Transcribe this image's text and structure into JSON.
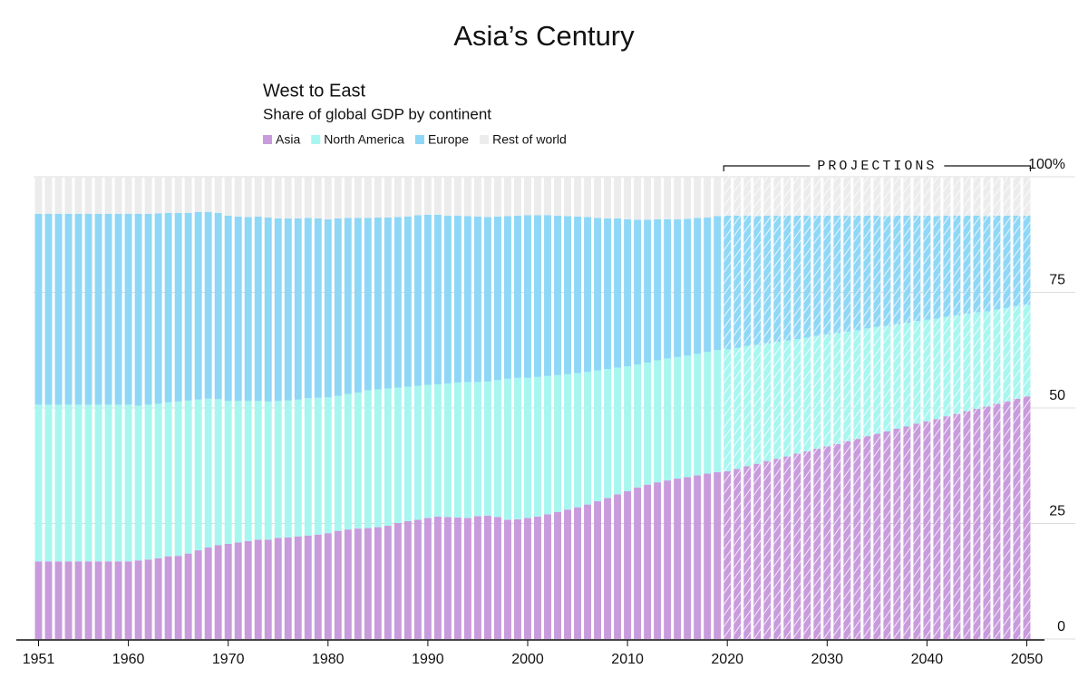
{
  "page_title": "Asia’s Century",
  "chart_data": {
    "type": "stacked_bar",
    "title": "West to East",
    "subtitle": "Share of global GDP by continent",
    "x": [
      1951,
      1952,
      1953,
      1954,
      1955,
      1956,
      1957,
      1958,
      1959,
      1960,
      1961,
      1962,
      1963,
      1964,
      1965,
      1966,
      1967,
      1968,
      1969,
      1970,
      1971,
      1972,
      1973,
      1974,
      1975,
      1976,
      1977,
      1978,
      1979,
      1980,
      1981,
      1982,
      1983,
      1984,
      1985,
      1986,
      1987,
      1988,
      1989,
      1990,
      1991,
      1992,
      1993,
      1994,
      1995,
      1996,
      1997,
      1998,
      1999,
      2000,
      2001,
      2002,
      2003,
      2004,
      2005,
      2006,
      2007,
      2008,
      2009,
      2010,
      2011,
      2012,
      2013,
      2014,
      2015,
      2016,
      2017,
      2018,
      2019,
      2020,
      2021,
      2022,
      2023,
      2024,
      2025,
      2026,
      2027,
      2028,
      2029,
      2030,
      2031,
      2032,
      2033,
      2034,
      2035,
      2036,
      2037,
      2038,
      2039,
      2040,
      2041,
      2042,
      2043,
      2044,
      2045,
      2046,
      2047,
      2048,
      2049,
      2050
    ],
    "series": [
      {
        "name": "Asia",
        "color": "#c89bdc",
        "values": [
          16.8,
          16.8,
          16.8,
          16.8,
          16.8,
          16.8,
          16.8,
          16.8,
          16.8,
          16.8,
          17.0,
          17.2,
          17.5,
          17.9,
          18.0,
          18.5,
          19.2,
          19.8,
          20.3,
          20.6,
          20.9,
          21.2,
          21.5,
          21.5,
          21.9,
          22.0,
          22.2,
          22.4,
          22.6,
          22.9,
          23.4,
          23.7,
          23.9,
          24.0,
          24.2,
          24.5,
          25.1,
          25.5,
          25.8,
          26.2,
          26.5,
          26.4,
          26.3,
          26.2,
          26.6,
          26.7,
          26.4,
          25.8,
          25.9,
          26.2,
          26.5,
          27.0,
          27.5,
          28.0,
          28.5,
          29.1,
          29.8,
          30.5,
          31.3,
          32.0,
          32.8,
          33.4,
          33.9,
          34.3,
          34.7,
          35.0,
          35.4,
          35.8,
          36.1,
          36.3,
          36.8,
          37.4,
          37.9,
          38.5,
          39.0,
          39.5,
          40.1,
          40.6,
          41.2,
          41.7,
          42.2,
          42.8,
          43.3,
          43.9,
          44.4,
          44.9,
          45.5,
          46.0,
          46.6,
          47.1,
          47.6,
          48.2,
          48.7,
          49.3,
          49.8,
          50.3,
          50.9,
          51.4,
          52.0,
          52.5
        ]
      },
      {
        "name": "North America",
        "color": "#a8f6f0",
        "values": [
          33.9,
          33.9,
          33.9,
          33.9,
          33.9,
          33.9,
          33.9,
          33.9,
          33.9,
          33.9,
          33.5,
          33.5,
          33.4,
          33.3,
          33.4,
          33.1,
          32.6,
          32.2,
          31.6,
          30.9,
          30.6,
          30.3,
          30.0,
          29.9,
          29.6,
          29.6,
          29.6,
          29.7,
          29.6,
          29.4,
          29.2,
          29.3,
          29.4,
          29.8,
          29.8,
          29.7,
          29.3,
          29.1,
          29.0,
          28.8,
          28.6,
          28.9,
          29.2,
          29.4,
          29.0,
          29.0,
          29.6,
          30.5,
          30.6,
          30.3,
          30.2,
          29.9,
          29.6,
          29.3,
          29.0,
          28.7,
          28.3,
          27.9,
          27.4,
          27.0,
          26.6,
          26.4,
          26.4,
          26.4,
          26.3,
          26.3,
          26.3,
          26.3,
          26.4,
          26.4,
          26.2,
          26.0,
          25.7,
          25.5,
          25.3,
          25.1,
          24.8,
          24.6,
          24.4,
          24.2,
          24.0,
          23.7,
          23.5,
          23.3,
          23.1,
          22.8,
          22.6,
          22.4,
          22.2,
          22.0,
          21.7,
          21.5,
          21.3,
          21.1,
          20.9,
          20.6,
          20.4,
          20.2,
          20.0,
          19.8
        ]
      },
      {
        "name": "Europe",
        "color": "#8fd7f6",
        "values": [
          41.3,
          41.3,
          41.3,
          41.3,
          41.3,
          41.3,
          41.3,
          41.3,
          41.3,
          41.3,
          41.5,
          41.3,
          41.2,
          41.0,
          40.8,
          40.6,
          40.6,
          40.4,
          40.3,
          40.1,
          39.9,
          39.8,
          39.9,
          39.8,
          39.5,
          39.4,
          39.2,
          39.0,
          38.8,
          38.5,
          38.4,
          38.1,
          37.8,
          37.3,
          37.2,
          37.0,
          36.9,
          36.8,
          36.9,
          36.8,
          36.7,
          36.3,
          36.1,
          35.9,
          35.8,
          35.6,
          35.4,
          35.2,
          35.1,
          35.2,
          35.0,
          34.8,
          34.5,
          34.2,
          33.9,
          33.5,
          33.0,
          32.6,
          32.3,
          31.8,
          31.3,
          30.9,
          30.5,
          30.1,
          29.8,
          29.6,
          29.4,
          29.1,
          29.0,
          28.9,
          28.6,
          28.2,
          27.9,
          27.6,
          27.3,
          27.0,
          26.7,
          26.4,
          26.0,
          25.7,
          25.4,
          25.1,
          24.8,
          24.4,
          24.1,
          23.8,
          23.5,
          23.2,
          22.8,
          22.5,
          22.2,
          21.9,
          21.6,
          21.2,
          20.9,
          20.6,
          20.3,
          20.0,
          19.6,
          19.3
        ]
      },
      {
        "name": "Rest of world",
        "color": "#ececec",
        "values": [
          8.0,
          8.0,
          8.0,
          8.0,
          8.0,
          8.0,
          8.0,
          8.0,
          8.0,
          8.0,
          8.0,
          8.0,
          7.9,
          7.8,
          7.8,
          7.8,
          7.6,
          7.6,
          7.8,
          8.4,
          8.6,
          8.7,
          8.6,
          8.8,
          9.0,
          9.0,
          9.0,
          8.9,
          9.0,
          9.2,
          9.0,
          8.9,
          8.9,
          8.9,
          8.8,
          8.8,
          8.7,
          8.6,
          8.3,
          8.2,
          8.2,
          8.4,
          8.4,
          8.5,
          8.6,
          8.7,
          8.6,
          8.5,
          8.4,
          8.3,
          8.3,
          8.3,
          8.4,
          8.5,
          8.6,
          8.7,
          8.9,
          9.0,
          9.0,
          9.2,
          9.3,
          9.3,
          9.2,
          9.2,
          9.2,
          9.1,
          8.9,
          8.8,
          8.5,
          8.4,
          8.4,
          8.4,
          8.5,
          8.4,
          8.4,
          8.4,
          8.4,
          8.4,
          8.4,
          8.4,
          8.4,
          8.4,
          8.4,
          8.4,
          8.4,
          8.5,
          8.4,
          8.4,
          8.4,
          8.4,
          8.5,
          8.4,
          8.4,
          8.4,
          8.4,
          8.5,
          8.4,
          8.4,
          8.4,
          8.4
        ]
      }
    ],
    "xlim": [
      1950.5,
      2050.5
    ],
    "xticks": [
      1951,
      1960,
      1970,
      1980,
      1990,
      2000,
      2010,
      2020,
      2030,
      2040,
      2050
    ],
    "ylim": [
      0,
      100
    ],
    "yticks": [
      0,
      25,
      50,
      75,
      {
        "value": 100,
        "label": "100%"
      }
    ],
    "grid": true,
    "legend": "top-left",
    "projections": {
      "label": "PROJECTIONS",
      "from": 2020,
      "to": 2050
    }
  }
}
